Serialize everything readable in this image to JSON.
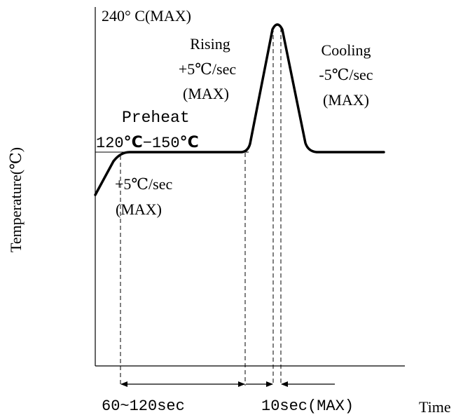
{
  "peak_label": "240° C(MAX)",
  "rising": {
    "line1": "Rising",
    "line2": "+5℃/sec",
    "line3": "(MAX)"
  },
  "cooling": {
    "line1": "Cooling",
    "line2": "-5℃/sec",
    "line3": "(MAX)"
  },
  "preheat": {
    "title": "Preheat",
    "range_a": "120",
    "unit_a": "°C",
    "dash": "−",
    "range_b": "150",
    "unit_b": "°C"
  },
  "initial_ramp": {
    "line1": "+5℃/sec",
    "line2": "(MAX)"
  },
  "y_axis_label": "Temperature(℃)",
  "x_axis_label": "Time",
  "preheat_duration": "60~120sec",
  "peak_duration": "10sec(MAX)",
  "colors": {
    "line": "#000000",
    "background": "#ffffff"
  }
}
